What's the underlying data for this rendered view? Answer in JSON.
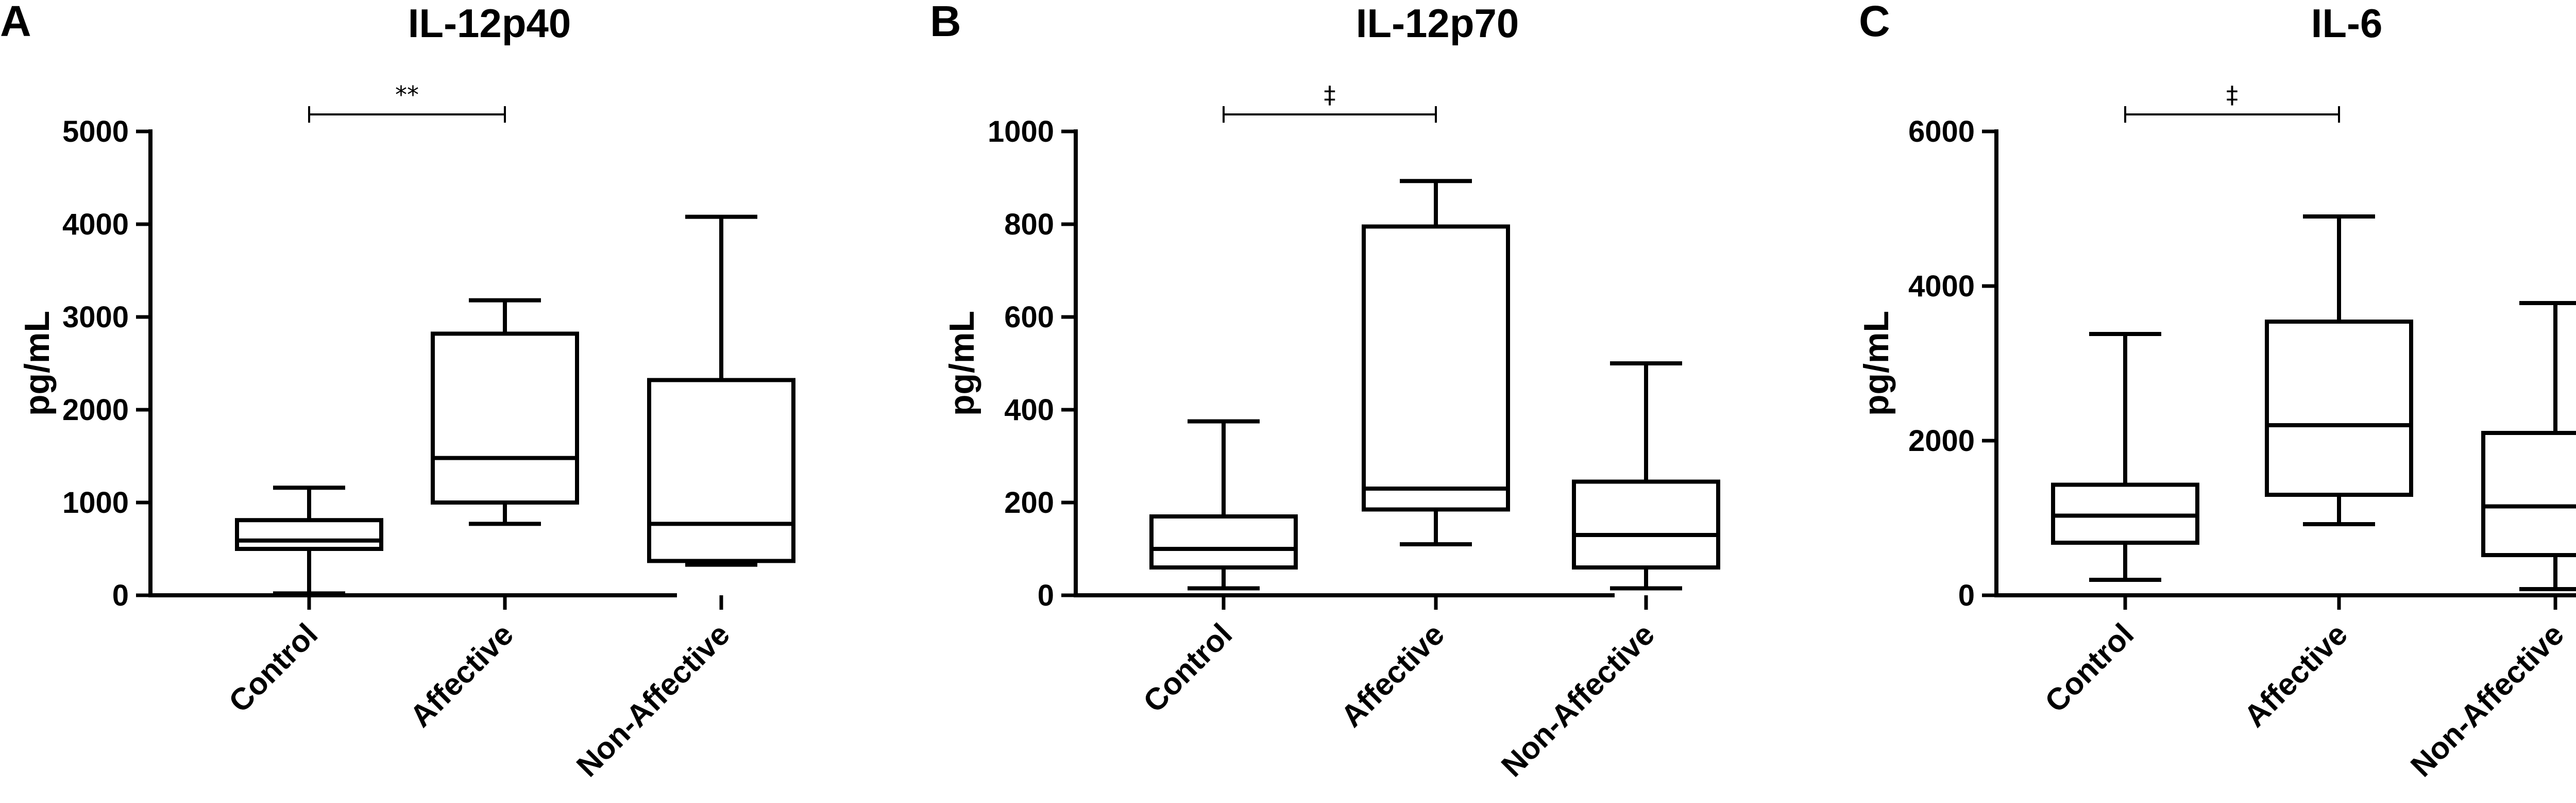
{
  "chart_data": [
    {
      "type": "box",
      "panel": "A",
      "title": "IL-12p40",
      "ylabel": "pg/mL",
      "ylim": [
        0,
        5000
      ],
      "yticks": [
        0,
        1000,
        2000,
        3000,
        4000,
        5000
      ],
      "categories": [
        "Control",
        "Affective",
        "Non-Affective"
      ],
      "boxes": [
        {
          "min": 20,
          "q1": 500,
          "median": 590,
          "q3": 810,
          "max": 1160
        },
        {
          "min": 770,
          "q1": 1000,
          "median": 1480,
          "q3": 2820,
          "max": 3180
        },
        {
          "min": 330,
          "q1": 370,
          "median": 770,
          "q3": 2320,
          "max": 4080
        }
      ],
      "significance": {
        "from": 0,
        "to": 1,
        "label": "**"
      }
    },
    {
      "type": "box",
      "panel": "B",
      "title": "IL-12p70",
      "ylabel": "pg/mL",
      "ylim": [
        0,
        1000
      ],
      "yticks": [
        0,
        200,
        400,
        600,
        800,
        1000
      ],
      "categories": [
        "Control",
        "Affective",
        "Non-Affective"
      ],
      "boxes": [
        {
          "min": 15,
          "q1": 60,
          "median": 100,
          "q3": 170,
          "max": 375
        },
        {
          "min": 110,
          "q1": 185,
          "median": 230,
          "q3": 795,
          "max": 893
        },
        {
          "min": 15,
          "q1": 60,
          "median": 130,
          "q3": 245,
          "max": 500
        }
      ],
      "significance": {
        "from": 0,
        "to": 1,
        "label": "‡"
      }
    },
    {
      "type": "box",
      "panel": "C",
      "title": "IL-6",
      "ylabel": "pg/mL",
      "ylim": [
        0,
        6000
      ],
      "yticks": [
        0,
        2000,
        4000,
        6000
      ],
      "categories": [
        "Control",
        "Affective",
        "Non-Affective"
      ],
      "boxes": [
        {
          "min": 200,
          "q1": 680,
          "median": 1030,
          "q3": 1430,
          "max": 3380
        },
        {
          "min": 920,
          "q1": 1300,
          "median": 2200,
          "q3": 3540,
          "max": 4900
        },
        {
          "min": 80,
          "q1": 520,
          "median": 1150,
          "q3": 2100,
          "max": 3780
        }
      ],
      "significance": {
        "from": 0,
        "to": 1,
        "label": "‡"
      }
    }
  ]
}
